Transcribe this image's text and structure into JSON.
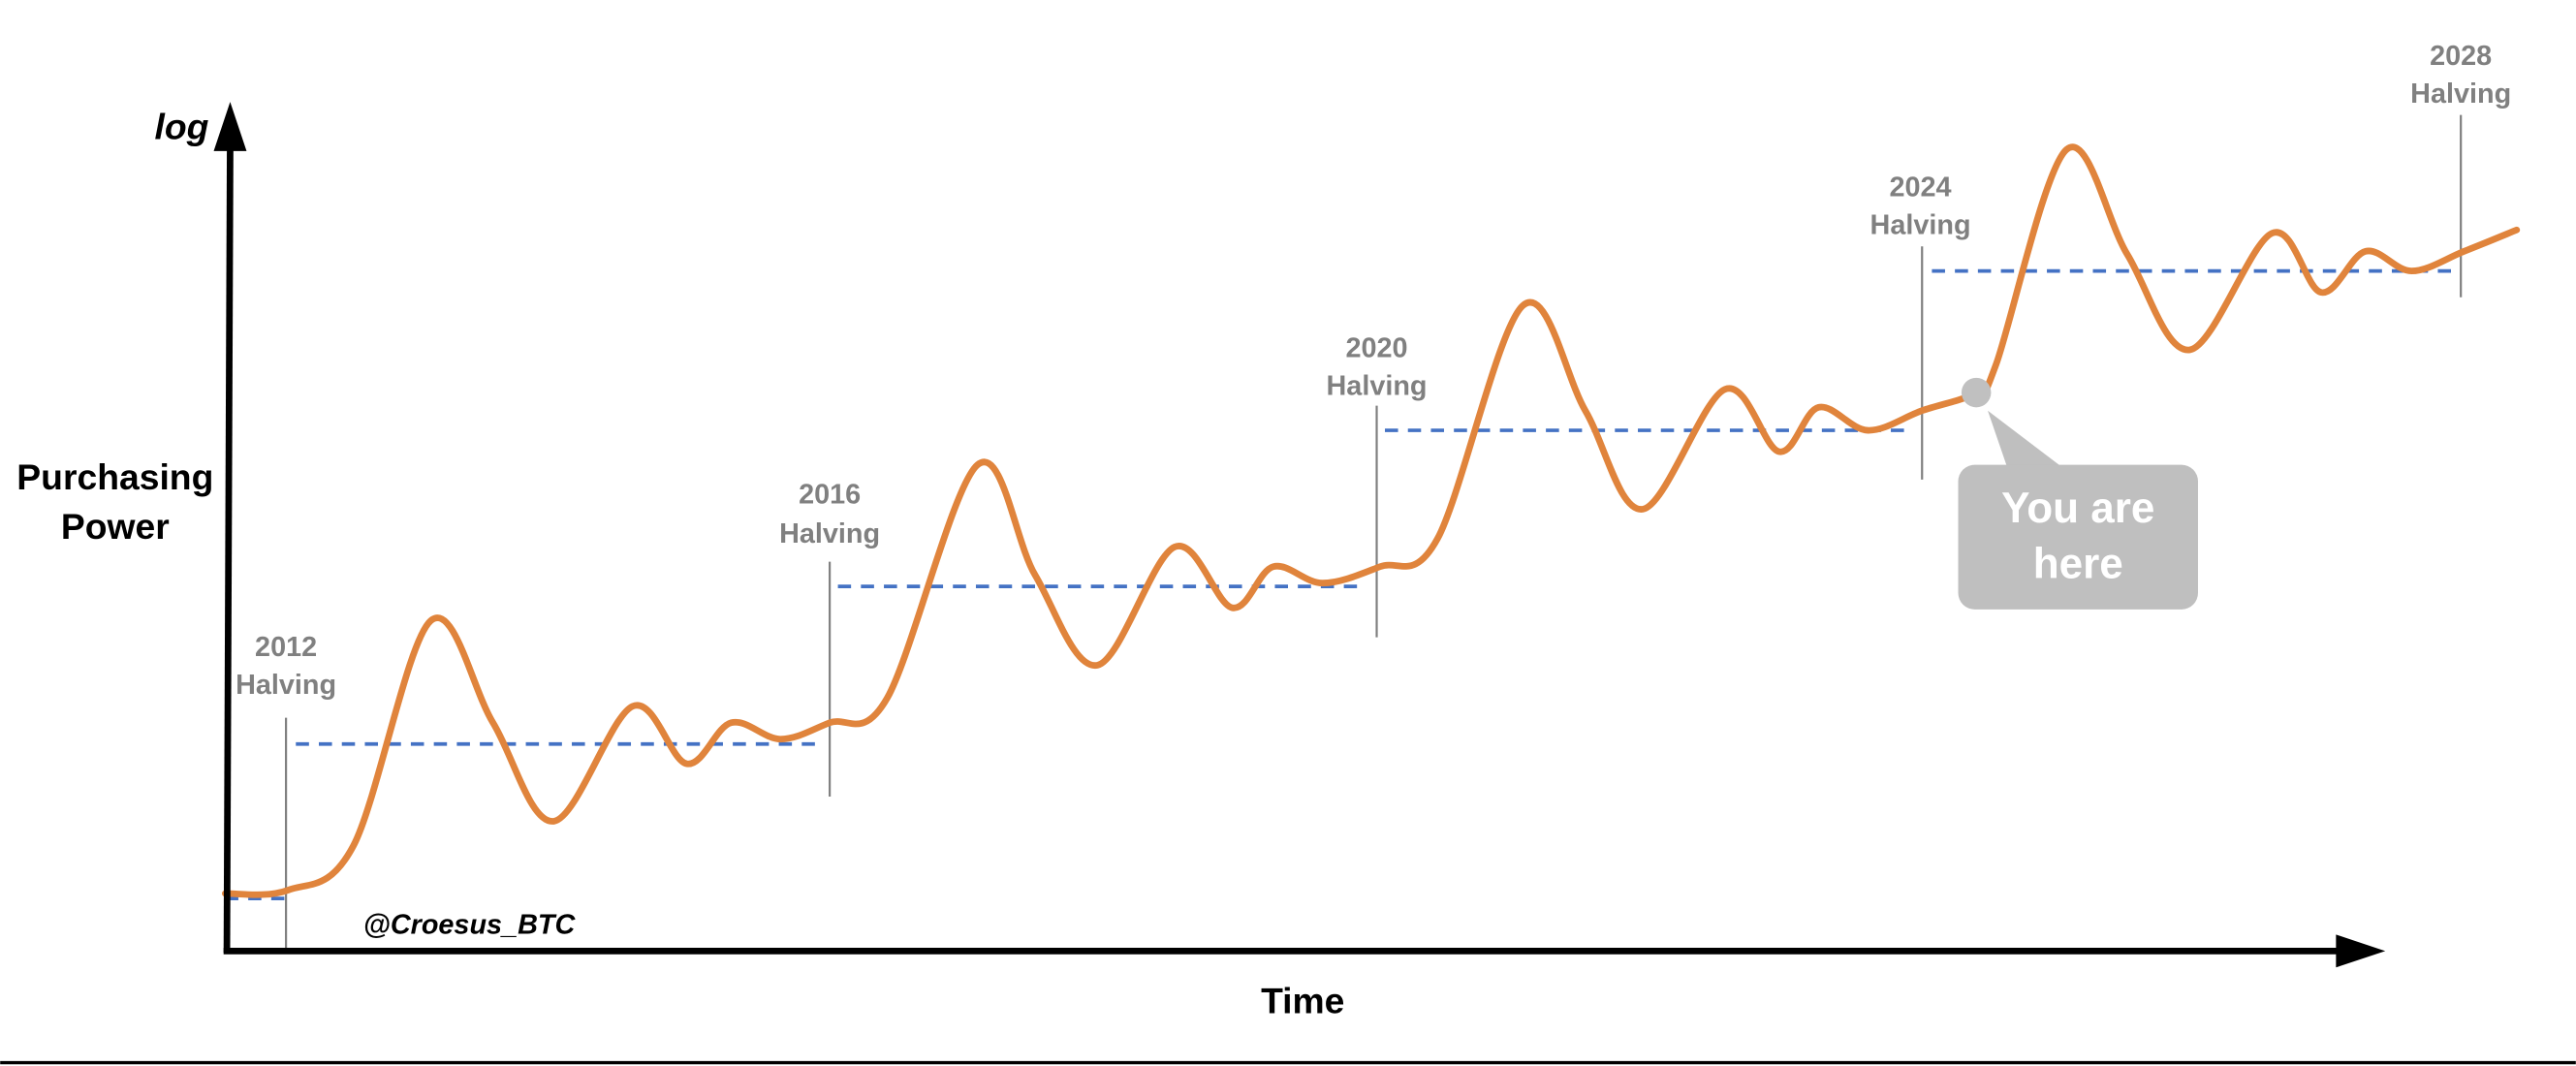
{
  "axes": {
    "y_scale": "log",
    "y_label": "Purchasing Power",
    "x_label": "Time"
  },
  "credit": "@Croesus_BTC",
  "halvings": [
    {
      "year": "2012",
      "label": "Halving"
    },
    {
      "year": "2016",
      "label": "Halving"
    },
    {
      "year": "2020",
      "label": "Halving"
    },
    {
      "year": "2024",
      "label": "Halving"
    },
    {
      "year": "2028",
      "label": "Halving"
    }
  ],
  "callout": "You are here"
}
